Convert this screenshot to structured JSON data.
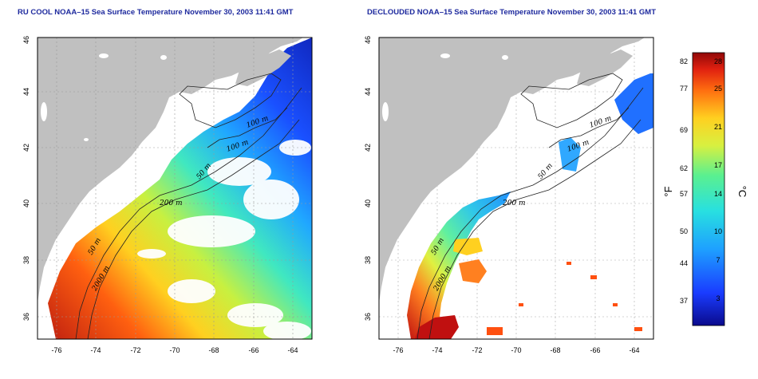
{
  "panels": [
    {
      "title": "RU COOL NOAA–15 Sea Surface Temperature November 30, 2003 11:41 GMT",
      "x_ticks": [
        "-76",
        "-74",
        "-72",
        "-70",
        "-68",
        "-66",
        "-64"
      ],
      "y_ticks": [
        "36",
        "38",
        "40",
        "42",
        "44",
        "46"
      ],
      "contour_labels": [
        "100 m",
        "100 m",
        "50 m",
        "200 m",
        "50 m",
        "2000 m"
      ]
    },
    {
      "title": "DECLOUDED NOAA–15 Sea Surface Temperature November 30, 2003 11:41 GMT",
      "x_ticks": [
        "-76",
        "-74",
        "-72",
        "-70",
        "-68",
        "-66",
        "-64"
      ],
      "y_ticks": [
        "36",
        "38",
        "40",
        "42",
        "44",
        "46"
      ],
      "contour_labels": [
        "100 m",
        "100 m",
        "50 m",
        "200 m",
        "50 m",
        "2000 m"
      ]
    }
  ],
  "colorbar": {
    "fahrenheit_ticks": [
      "82",
      "77",
      "69",
      "62",
      "57",
      "50",
      "44",
      "37"
    ],
    "celsius_ticks": [
      "28",
      "25",
      "21",
      "17",
      "14",
      "10",
      "7",
      "3"
    ],
    "fahrenheit_label": "°F",
    "celsius_label": "°C"
  },
  "colors": {
    "land": "#c0c0c0",
    "ocean_missing": "#ffffff",
    "grid": "#999999",
    "title": "#1e2a9e"
  }
}
